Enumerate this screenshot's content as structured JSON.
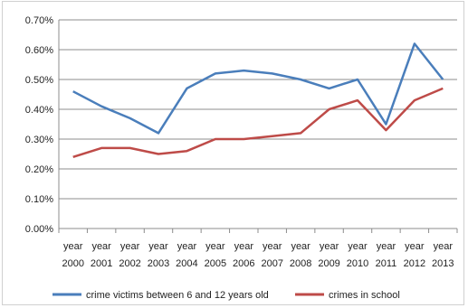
{
  "chart_data": {
    "type": "line",
    "title": "",
    "xlabel": "",
    "ylabel": "",
    "categories": [
      [
        "year",
        "2000"
      ],
      [
        "year",
        "2001"
      ],
      [
        "year",
        "2002"
      ],
      [
        "year",
        "2003"
      ],
      [
        "year",
        "2004"
      ],
      [
        "year",
        "2005"
      ],
      [
        "year",
        "2006"
      ],
      [
        "year",
        "2007"
      ],
      [
        "year",
        "2008"
      ],
      [
        "year",
        "2009"
      ],
      [
        "year",
        "2010"
      ],
      [
        "year",
        "2011"
      ],
      [
        "year",
        "2012"
      ],
      [
        "year",
        "2013"
      ]
    ],
    "ylim": [
      0,
      0.7
    ],
    "yticks": [
      0,
      0.1,
      0.2,
      0.3,
      0.4,
      0.5,
      0.6,
      0.7
    ],
    "ytick_labels": [
      "0.00%",
      "0.10%",
      "0.20%",
      "0.30%",
      "0.40%",
      "0.50%",
      "0.60%",
      "0.70%"
    ],
    "grid": true,
    "legend_position": "bottom",
    "series": [
      {
        "name": "crime victims between 6 and 12 years old",
        "color": "#4a7ebb",
        "values": [
          0.46,
          0.41,
          0.37,
          0.32,
          0.47,
          0.52,
          0.53,
          0.52,
          0.5,
          0.47,
          0.5,
          0.35,
          0.62,
          0.5
        ]
      },
      {
        "name": "crimes in school",
        "color": "#be4b48",
        "values": [
          0.24,
          0.27,
          0.27,
          0.25,
          0.26,
          0.3,
          0.3,
          0.31,
          0.32,
          0.4,
          0.43,
          0.33,
          0.43,
          0.47
        ]
      }
    ]
  }
}
